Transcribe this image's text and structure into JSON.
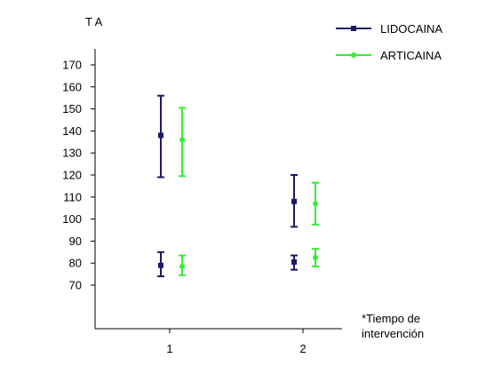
{
  "chart_data": {
    "type": "scatter",
    "ylabel": "T A",
    "xlabel": "",
    "note_line1": "*Tiempo de",
    "note_line2": "intervención",
    "categories": [
      "1",
      "2"
    ],
    "yticks": [
      70,
      80,
      90,
      100,
      110,
      120,
      130,
      140,
      150,
      160,
      170
    ],
    "ylim": [
      70,
      170
    ],
    "legend_position": "top-right",
    "grid": false,
    "series": [
      {
        "name": "LIDOCAINA",
        "color": "#1a1a66",
        "marker": "square",
        "points": [
          {
            "x": 1,
            "y": 138,
            "low": 119,
            "high": 156
          },
          {
            "x": 1,
            "y": 79,
            "low": 74,
            "high": 85
          },
          {
            "x": 2,
            "y": 108,
            "low": 96.5,
            "high": 120
          },
          {
            "x": 2,
            "y": 80.5,
            "low": 77,
            "high": 83.5
          }
        ]
      },
      {
        "name": "ARTICAINA",
        "color": "#33ee33",
        "marker": "circle",
        "points": [
          {
            "x": 1,
            "y": 136,
            "low": 119.5,
            "high": 150.5
          },
          {
            "x": 1,
            "y": 78.5,
            "low": 74.5,
            "high": 83.5
          },
          {
            "x": 2,
            "y": 107,
            "low": 97.5,
            "high": 116.5
          },
          {
            "x": 2,
            "y": 82.5,
            "low": 78.5,
            "high": 86.5
          }
        ]
      }
    ]
  }
}
